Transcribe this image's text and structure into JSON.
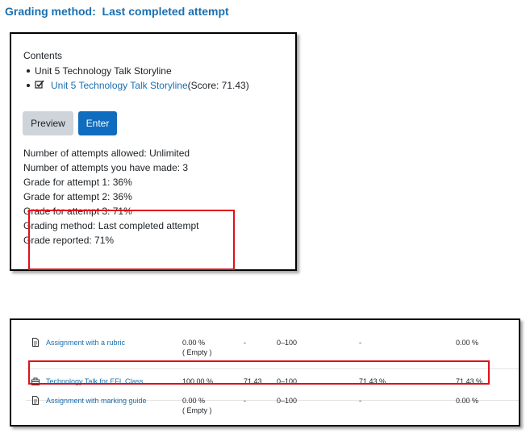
{
  "heading": "Grading method:  Last completed attempt",
  "scorm": {
    "contents_label": "Contents",
    "items": [
      {
        "label": "Unit 5 Technology Talk Storyline"
      },
      {
        "label": "Unit 5 Technology Talk Storyline",
        "score": "(Score: 71.43)"
      }
    ],
    "preview_label": "Preview",
    "enter_label": "Enter",
    "info": [
      "Number of attempts allowed: Unlimited",
      "Number of attempts you have made: 3",
      "Grade for attempt 1: 36%",
      "Grade for attempt 2: 36%",
      "Grade for attempt 3: 71%",
      "Grading method: Last completed attempt",
      "Grade reported: 71%"
    ]
  },
  "grades": {
    "rows": [
      {
        "icon": "assignment-icon",
        "name": "Assignment with a rubric",
        "weight": "0.00 %",
        "empty": "( Empty )",
        "grade": "-",
        "range": "0–100",
        "percentage": "-",
        "contribution": "0.00 %"
      },
      {
        "icon": "scorm-package-icon",
        "name": "Technology Talk for EFL Class",
        "weight": "100.00 %",
        "grade": "71.43",
        "range": "0–100",
        "percentage": "71.43 %",
        "contribution": "71.43 %"
      },
      {
        "icon": "assignment-icon",
        "name": "Assignment with marking guide",
        "weight": "0.00 %",
        "empty": "( Empty )",
        "grade": "-",
        "range": "0–100",
        "percentage": "-",
        "contribution": "0.00 %"
      }
    ]
  },
  "colors": {
    "link": "#1a6fb0",
    "primary_button": "#0f6cbf",
    "highlight_box": "#e0101a"
  }
}
